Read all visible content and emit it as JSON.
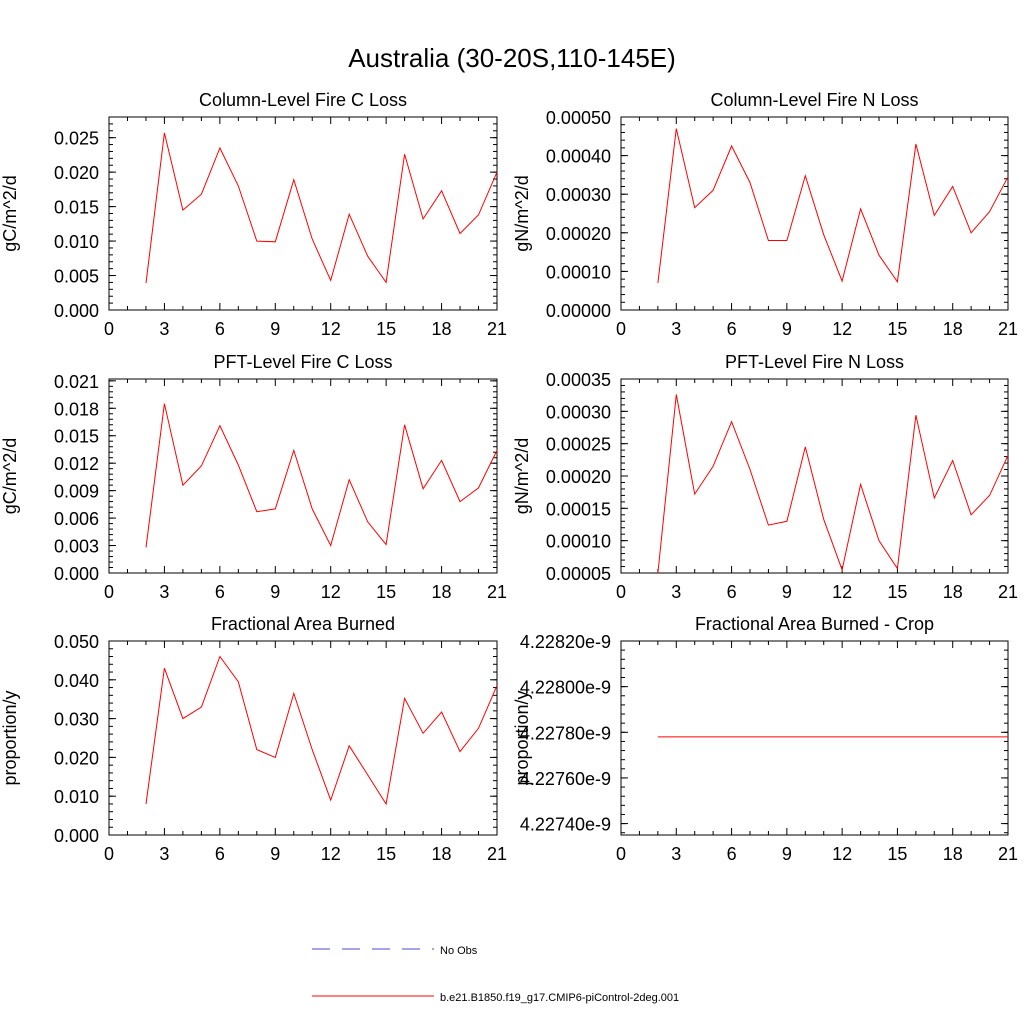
{
  "figure": {
    "title": "Australia (30-20S,110-145E)"
  },
  "legend": {
    "items": [
      {
        "label": "No Obs",
        "color": "#4a4ad8",
        "style": "dashed"
      },
      {
        "label": "b.e21.B1850.f19_g17.CMIP6-piControl-2deg.001",
        "color": "#ff0000",
        "style": "solid"
      }
    ]
  },
  "chart_data": [
    {
      "type": "line",
      "title": "Column-Level Fire C Loss",
      "xlabel": "",
      "ylabel": "gC/m^2/d",
      "xlim": [
        0,
        21
      ],
      "ylim": [
        0,
        0.028
      ],
      "xticks": [
        "0",
        "3",
        "6",
        "9",
        "12",
        "15",
        "18",
        "21"
      ],
      "yticks": [
        0,
        0.005,
        0.01,
        0.015,
        0.02,
        0.025
      ],
      "yticklabels": [
        "0.000",
        "0.005",
        "0.010",
        "0.015",
        "0.020",
        "0.025"
      ],
      "series": [
        {
          "name": "b.e21.B1850.f19_g17.CMIP6-piControl-2deg.001",
          "color": "#ff0000",
          "x": [
            2,
            3,
            4,
            5,
            6,
            7,
            8,
            9,
            10,
            11,
            12,
            13,
            14,
            15,
            16,
            17,
            18,
            19,
            20,
            21
          ],
          "y": [
            0.0039,
            0.0257,
            0.0145,
            0.0168,
            0.0235,
            0.018,
            0.01,
            0.0099,
            0.0189,
            0.0103,
            0.0043,
            0.0139,
            0.0078,
            0.004,
            0.0226,
            0.0132,
            0.0173,
            0.0111,
            0.0138,
            0.02
          ]
        }
      ]
    },
    {
      "type": "line",
      "title": "Column-Level Fire N Loss",
      "xlabel": "",
      "ylabel": "gN/m^2/d",
      "xlim": [
        0,
        21
      ],
      "ylim": [
        0,
        0.0005
      ],
      "xticks": [
        "0",
        "3",
        "6",
        "9",
        "12",
        "15",
        "18",
        "21"
      ],
      "yticks": [
        0,
        0.0001,
        0.0002,
        0.0003,
        0.0004,
        0.0005
      ],
      "yticklabels": [
        "0.00000",
        "0.00010",
        "0.00020",
        "0.00030",
        "0.00040",
        "0.00050"
      ],
      "series": [
        {
          "name": "b.e21.B1850.f19_g17.CMIP6-piControl-2deg.001",
          "color": "#ff0000",
          "x": [
            2,
            3,
            4,
            5,
            6,
            7,
            8,
            9,
            10,
            11,
            12,
            13,
            14,
            15,
            16,
            17,
            18,
            19,
            20,
            21
          ],
          "y": [
            7e-05,
            0.00047,
            0.000265,
            0.00031,
            0.000425,
            0.00033,
            0.00018,
            0.00018,
            0.000348,
            0.000195,
            7.5e-05,
            0.000262,
            0.000142,
            7.3e-05,
            0.00043,
            0.000245,
            0.00032,
            0.0002,
            0.000255,
            0.000345
          ]
        }
      ]
    },
    {
      "type": "line",
      "title": "PFT-Level Fire C Loss",
      "xlabel": "",
      "ylabel": "gC/m^2/d",
      "xlim": [
        0,
        21
      ],
      "ylim": [
        0,
        0.0212
      ],
      "xticks": [
        "0",
        "3",
        "6",
        "9",
        "12",
        "15",
        "18",
        "21"
      ],
      "yticks": [
        0,
        0.003,
        0.006,
        0.009,
        0.012,
        0.015,
        0.018,
        0.021
      ],
      "yticklabels": [
        "0.000",
        "0.003",
        "0.006",
        "0.009",
        "0.012",
        "0.015",
        "0.018",
        "0.021"
      ],
      "series": [
        {
          "name": "b.e21.B1850.f19_g17.CMIP6-piControl-2deg.001",
          "color": "#ff0000",
          "x": [
            2,
            3,
            4,
            5,
            6,
            7,
            8,
            9,
            10,
            11,
            12,
            13,
            14,
            15,
            16,
            17,
            18,
            19,
            20,
            21
          ],
          "y": [
            0.0028,
            0.0185,
            0.0096,
            0.0117,
            0.0161,
            0.0118,
            0.0067,
            0.007,
            0.0134,
            0.007,
            0.003,
            0.0102,
            0.0056,
            0.0031,
            0.0162,
            0.0092,
            0.0123,
            0.0078,
            0.0093,
            0.0134
          ]
        }
      ]
    },
    {
      "type": "line",
      "title": "PFT-Level Fire N Loss",
      "xlabel": "",
      "ylabel": "gN/m^2/d",
      "xlim": [
        0,
        21
      ],
      "ylim": [
        5e-05,
        0.00035
      ],
      "xticks": [
        "0",
        "3",
        "6",
        "9",
        "12",
        "15",
        "18",
        "21"
      ],
      "yticks": [
        5e-05,
        0.0001,
        0.00015,
        0.0002,
        0.00025,
        0.0003,
        0.00035
      ],
      "yticklabels": [
        "0.00005",
        "0.00010",
        "0.00015",
        "0.00020",
        "0.00025",
        "0.00030",
        "0.00035"
      ],
      "series": [
        {
          "name": "b.e21.B1850.f19_g17.CMIP6-piControl-2deg.001",
          "color": "#ff0000",
          "x": [
            2,
            3,
            4,
            5,
            6,
            7,
            8,
            9,
            10,
            11,
            12,
            13,
            14,
            15,
            16,
            17,
            18,
            19,
            20,
            21
          ],
          "y": [
            5e-05,
            0.000326,
            0.000172,
            0.000215,
            0.000284,
            0.00021,
            0.000124,
            0.00013,
            0.000245,
            0.000133,
            5.5e-05,
            0.000187,
            0.0001,
            5.7e-05,
            0.000294,
            0.000166,
            0.000224,
            0.00014,
            0.00017,
            0.000232
          ]
        }
      ]
    },
    {
      "type": "line",
      "title": "Fractional Area Burned",
      "xlabel": "",
      "ylabel": "proportion/y",
      "xlim": [
        0,
        21
      ],
      "ylim": [
        0,
        0.05
      ],
      "xticks": [
        "0",
        "3",
        "6",
        "9",
        "12",
        "15",
        "18",
        "21"
      ],
      "yticks": [
        0,
        0.01,
        0.02,
        0.03,
        0.04,
        0.05
      ],
      "yticklabels": [
        "0.000",
        "0.010",
        "0.020",
        "0.030",
        "0.040",
        "0.050"
      ],
      "series": [
        {
          "name": "b.e21.B1850.f19_g17.CMIP6-piControl-2deg.001",
          "color": "#ff0000",
          "x": [
            2,
            3,
            4,
            5,
            6,
            7,
            8,
            9,
            10,
            11,
            12,
            13,
            14,
            15,
            16,
            17,
            18,
            19,
            20,
            21
          ],
          "y": [
            0.008,
            0.043,
            0.03,
            0.033,
            0.046,
            0.0395,
            0.022,
            0.02,
            0.0365,
            0.022,
            0.009,
            0.023,
            0.0155,
            0.008,
            0.0352,
            0.0262,
            0.0317,
            0.0215,
            0.0275,
            0.0385
          ]
        }
      ]
    },
    {
      "type": "line",
      "title": "Fractional Area Burned - Crop",
      "xlabel": "",
      "ylabel": "proportion/y",
      "xlim": [
        0,
        21
      ],
      "ylim": [
        4.22735e-09,
        4.2282e-09
      ],
      "xticks": [
        "0",
        "3",
        "6",
        "9",
        "12",
        "15",
        "18",
        "21"
      ],
      "yticks": [
        4.2274e-09,
        4.2276e-09,
        4.2278e-09,
        4.228e-09,
        4.2282e-09
      ],
      "yticklabels": [
        "4.22740e-9",
        "4.22760e-9",
        "4.22780e-9",
        "4.22800e-9",
        "4.22820e-9"
      ],
      "series": [
        {
          "name": "b.e21.B1850.f19_g17.CMIP6-piControl-2deg.001",
          "color": "#ff0000",
          "x": [
            2,
            21
          ],
          "y": [
            4.22778e-09,
            4.22778e-09
          ]
        }
      ]
    }
  ]
}
